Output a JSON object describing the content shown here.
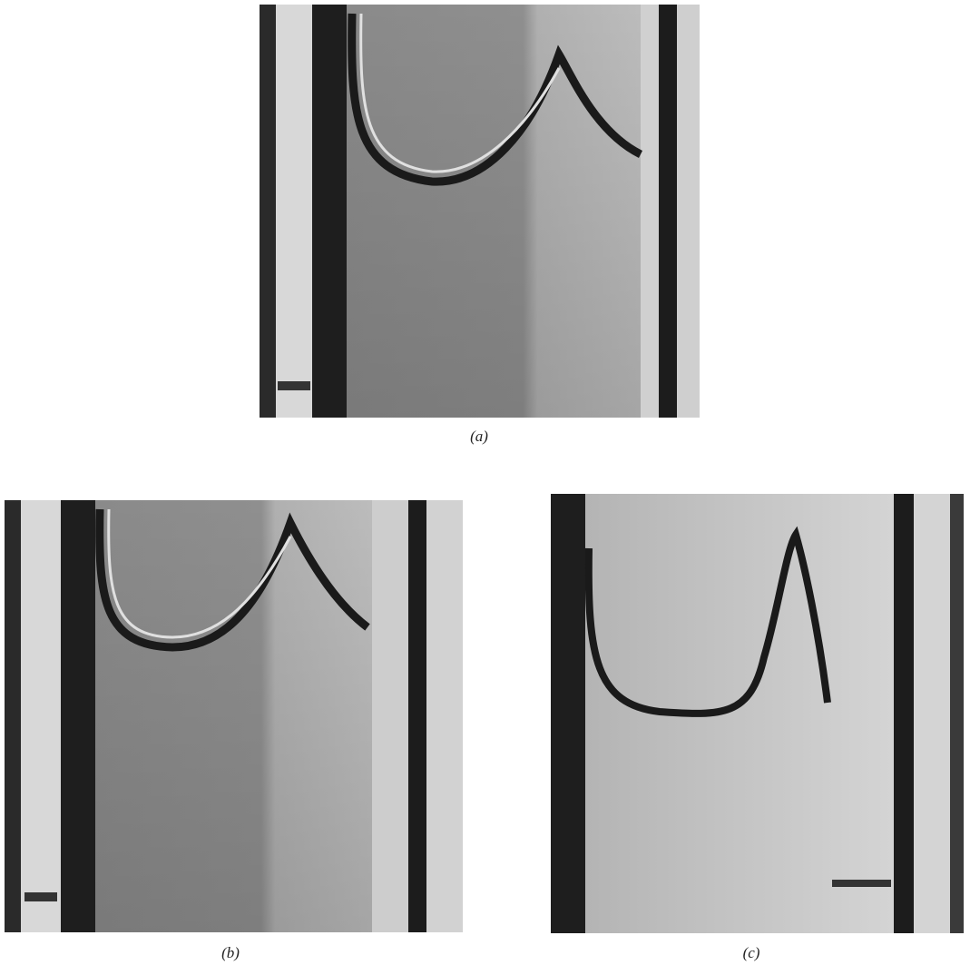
{
  "figure": {
    "panels": [
      {
        "label": "(a)"
      },
      {
        "label": "(b)"
      },
      {
        "label": "(c)"
      }
    ]
  }
}
